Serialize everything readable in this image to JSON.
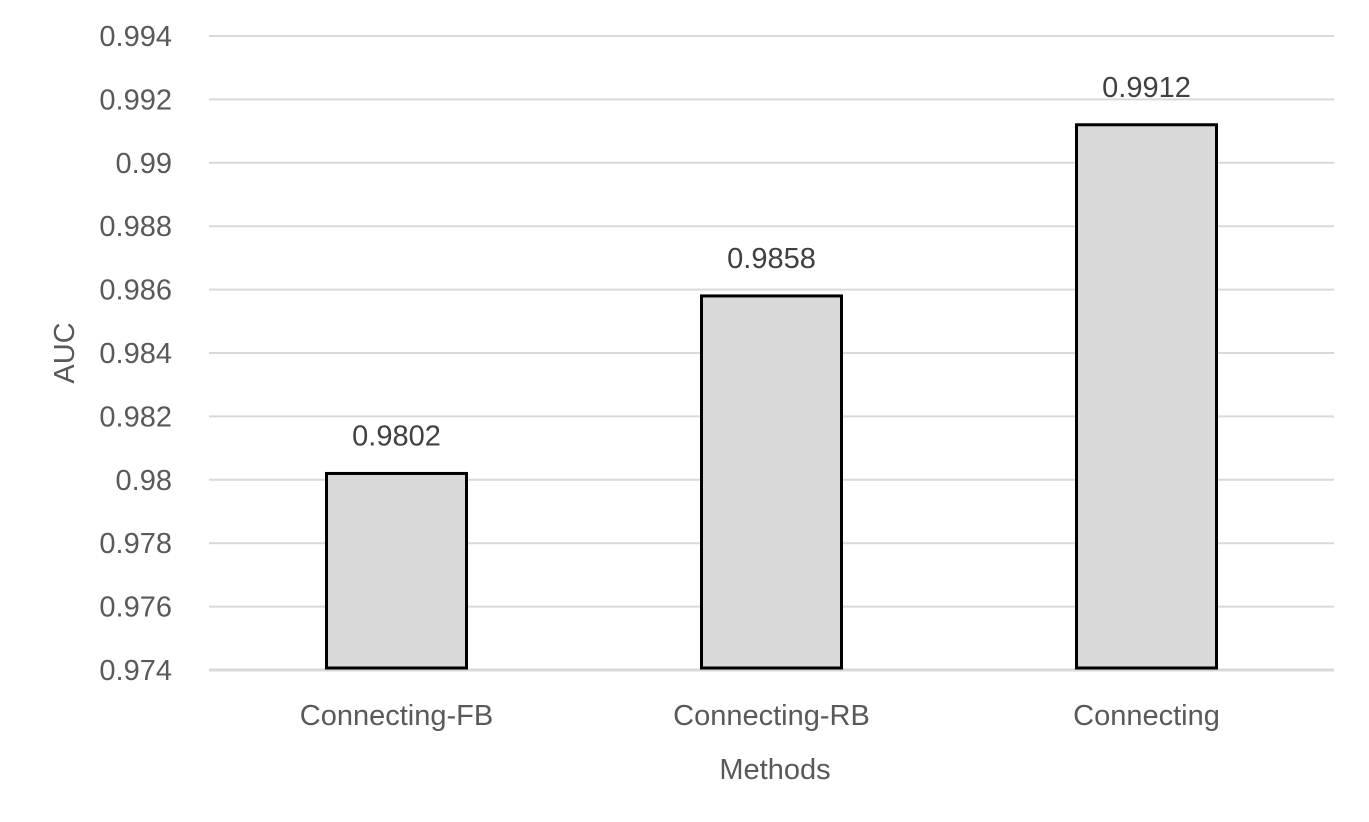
{
  "chart_data": {
    "type": "bar",
    "title": "",
    "xlabel": "Methods",
    "ylabel": "AUC",
    "categories": [
      "Connecting-FB",
      "Connecting-RB",
      "Connecting"
    ],
    "values": [
      0.9802,
      0.9858,
      0.9912
    ],
    "data_labels": [
      "0.9802",
      "0.9858",
      "0.9912"
    ],
    "ylim": [
      0.974,
      0.994
    ],
    "yticks": [
      0.974,
      0.976,
      0.978,
      0.98,
      0.982,
      0.984,
      0.986,
      0.988,
      0.99,
      0.992,
      0.994
    ],
    "ytick_labels": [
      "0.974",
      "0.976",
      "0.978",
      "0.98",
      "0.982",
      "0.984",
      "0.986",
      "0.988",
      "0.99",
      "0.992",
      "0.994"
    ],
    "grid": true,
    "legend": "none",
    "colors": {
      "bar_fill": "#d9d9d9",
      "bar_edge": "#000000",
      "grid": "#d9d9d9",
      "text": "#595959"
    }
  }
}
